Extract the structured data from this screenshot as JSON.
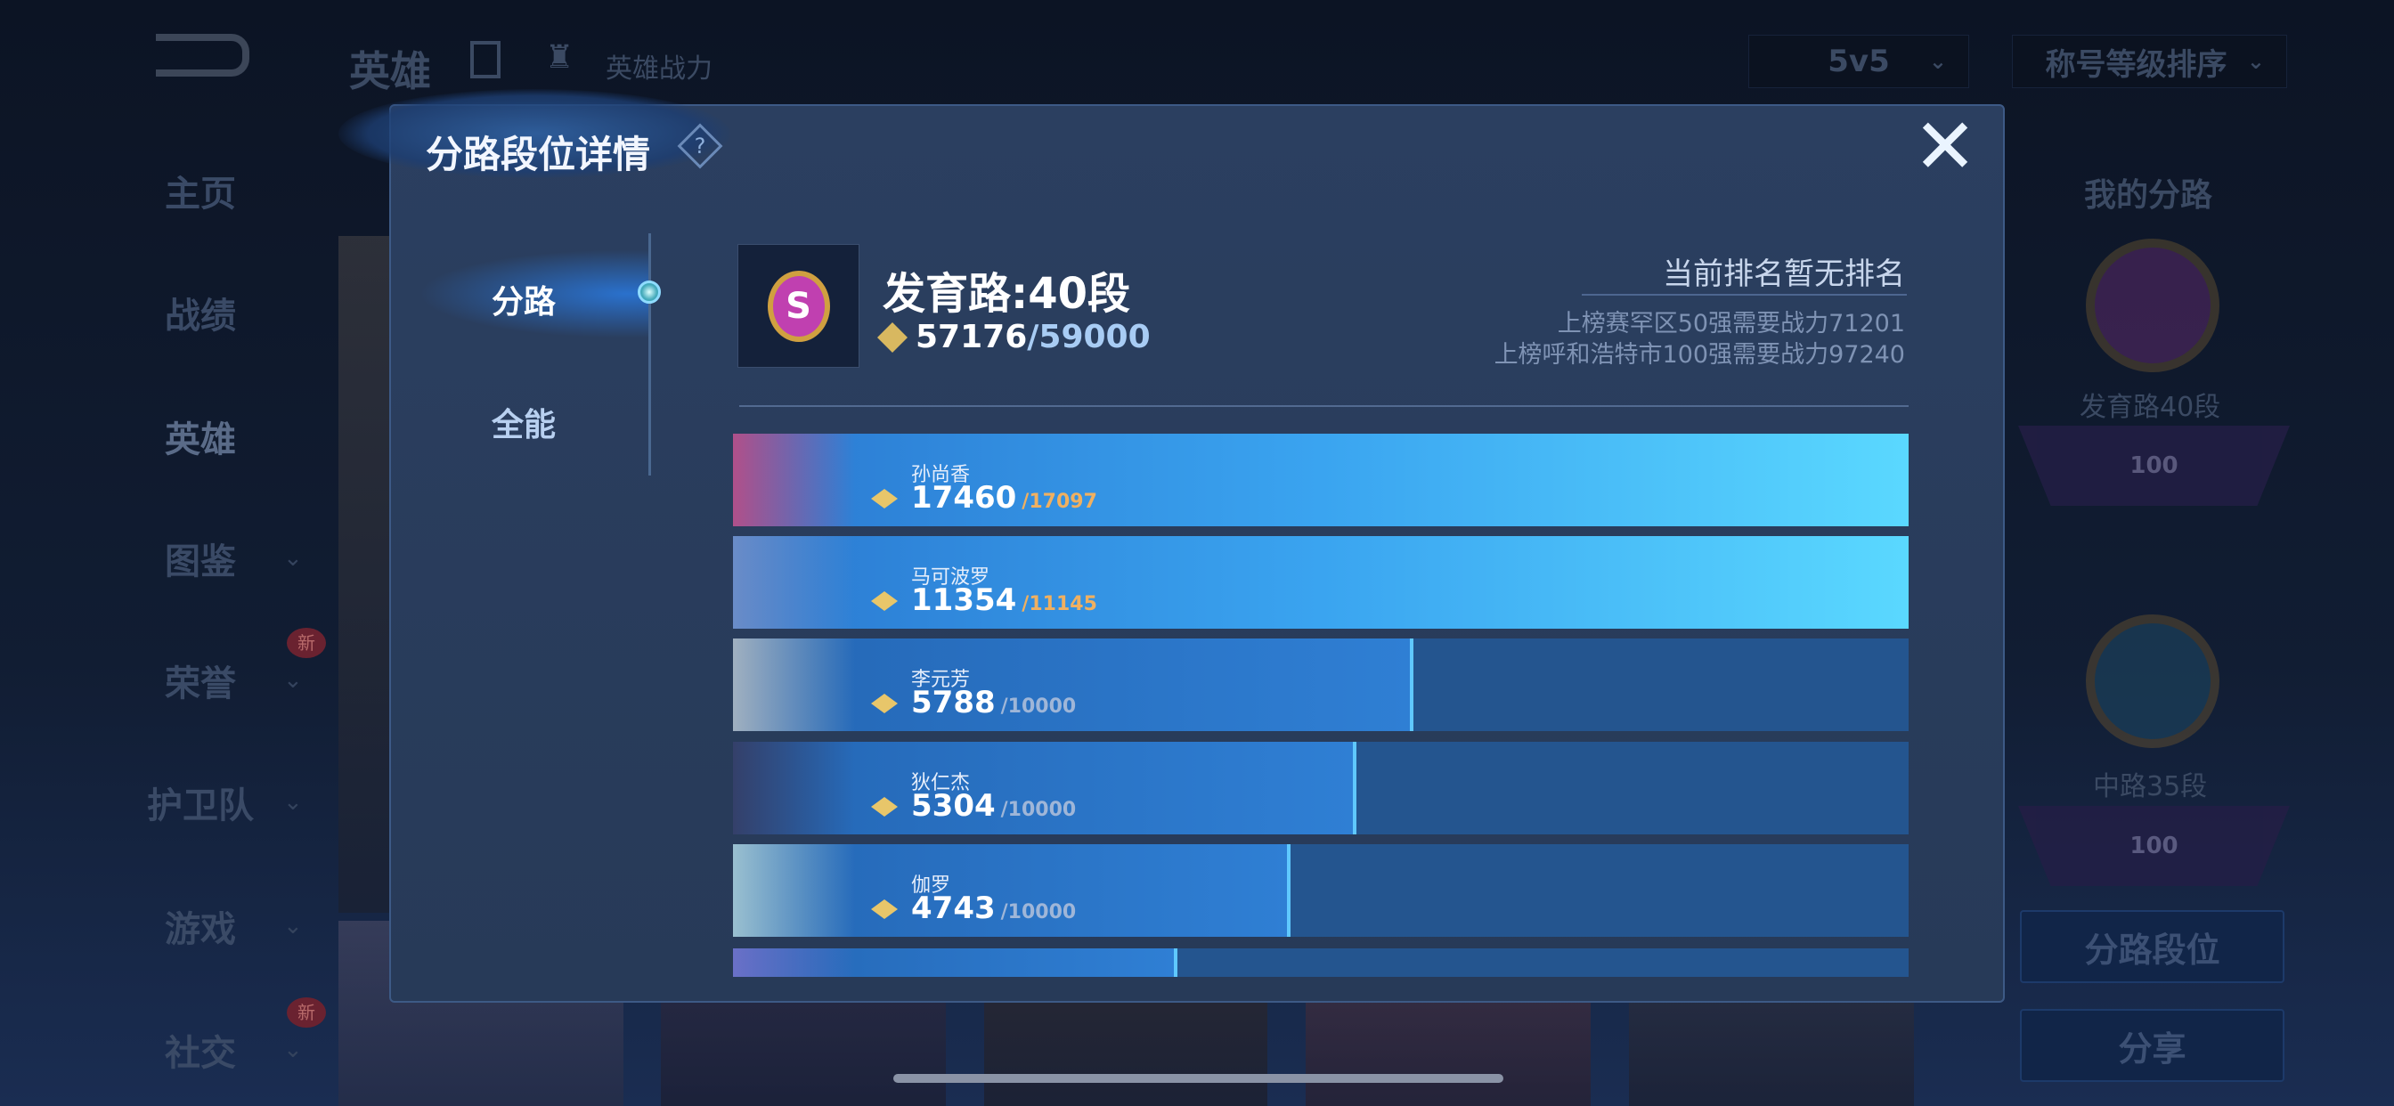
{
  "topbar": {
    "title": "英雄",
    "sub_label": "英雄战力",
    "mode_select": "5v5",
    "sort_select": "称号等级排序"
  },
  "sidebar": {
    "items": [
      {
        "label": "主页",
        "chevron": false,
        "new": false
      },
      {
        "label": "战绩",
        "chevron": false,
        "new": false
      },
      {
        "label": "英雄",
        "chevron": false,
        "new": false,
        "active": true
      },
      {
        "label": "图鉴",
        "chevron": true,
        "new": false
      },
      {
        "label": "荣誉",
        "chevron": true,
        "new": true
      },
      {
        "label": "护卫队",
        "chevron": true,
        "new": false
      },
      {
        "label": "游戏",
        "chevron": true,
        "new": false
      },
      {
        "label": "社交",
        "chevron": true,
        "new": true
      }
    ],
    "new_badge": "新"
  },
  "right_panel": {
    "heading": "我的分路",
    "lanes": [
      {
        "label": "发育路40段",
        "banner": "100"
      },
      {
        "label": "中路35段",
        "banner": "100"
      }
    ],
    "lane_button": "分路段位",
    "share_button": "分享"
  },
  "modal": {
    "title": "分路段位详情",
    "tabs": [
      {
        "label": "分路",
        "active": true
      },
      {
        "label": "全能",
        "active": false
      }
    ],
    "lane_title": "发育路:40段",
    "power_current": "57176",
    "power_target": "/59000",
    "rank_status": "当前排名暂无排名",
    "rank_lines": [
      "上榜赛罕区50强需要战力71201",
      "上榜呼和浩特市100强需要战力97240"
    ],
    "heroes": [
      {
        "name": "孙尚香",
        "power": "17460",
        "target": "/17097",
        "progress": 1.0,
        "color": "#b0508a"
      },
      {
        "name": "马可波罗",
        "power": "11354",
        "target": "/11145",
        "progress": 1.0,
        "color": "#6a8cc8"
      },
      {
        "name": "李元芳",
        "power": "5788",
        "target": "/10000",
        "progress": 0.5788,
        "color": "#a0b0c0"
      },
      {
        "name": "狄仁杰",
        "power": "5304",
        "target": "/10000",
        "progress": 0.5304,
        "color": "#34406a"
      },
      {
        "name": "伽罗",
        "power": "4743",
        "target": "/10000",
        "progress": 0.4743,
        "color": "#9ac0d0"
      },
      {
        "name": "",
        "power": "",
        "target": "",
        "progress": 0.378,
        "color": "#6a70c8"
      }
    ]
  },
  "colors": {
    "accent": "#5fd8ff",
    "gold": "#e8c66a",
    "target_orange": "#f0b060"
  }
}
